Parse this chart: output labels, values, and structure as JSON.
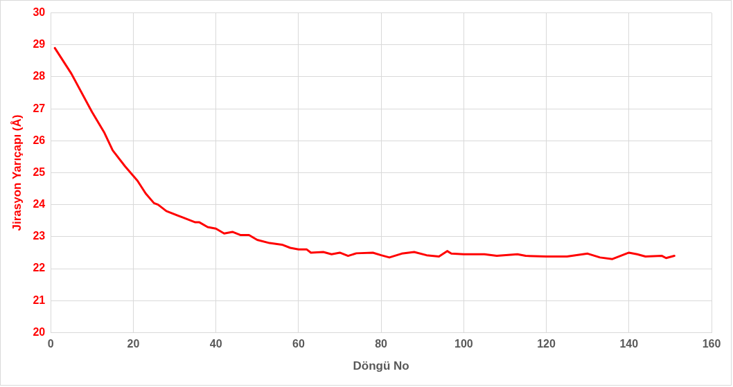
{
  "chart_data": {
    "type": "line",
    "xlabel": "Döngü No",
    "ylabel": "Jirasyon Yarıçapı (Å)",
    "xlim": [
      0,
      160
    ],
    "xticks": [
      0,
      20,
      40,
      60,
      80,
      100,
      120,
      140,
      160
    ],
    "ylim": [
      20,
      30
    ],
    "yticks": [
      20,
      21,
      22,
      23,
      24,
      25,
      26,
      27,
      28,
      29,
      30
    ],
    "grid": true,
    "legend": false,
    "marker": "none",
    "line_style": "solid",
    "series": [
      {
        "color": "#ff0000",
        "x": [
          1,
          5,
          10,
          13,
          15,
          18,
          21,
          23,
          25,
          26,
          28,
          32,
          35,
          36,
          38,
          40,
          42,
          44,
          46,
          48,
          50,
          53,
          56,
          58,
          60,
          62,
          63,
          66,
          68,
          70,
          72,
          74,
          78,
          80,
          82,
          85,
          88,
          91,
          94,
          96,
          97,
          100,
          105,
          108,
          113,
          115,
          120,
          125,
          130,
          133,
          136,
          140,
          142,
          144,
          148,
          149,
          151
        ],
        "values": [
          28.9,
          28.1,
          26.9,
          26.25,
          25.7,
          25.2,
          24.75,
          24.35,
          24.05,
          24.0,
          23.8,
          23.6,
          23.45,
          23.45,
          23.3,
          23.25,
          23.1,
          23.15,
          23.05,
          23.05,
          22.9,
          22.8,
          22.75,
          22.65,
          22.6,
          22.6,
          22.5,
          22.52,
          22.45,
          22.5,
          22.4,
          22.48,
          22.5,
          22.42,
          22.35,
          22.47,
          22.52,
          22.42,
          22.38,
          22.55,
          22.47,
          22.45,
          22.45,
          22.4,
          22.45,
          22.4,
          22.38,
          22.38,
          22.47,
          22.35,
          22.3,
          22.5,
          22.45,
          22.38,
          22.4,
          22.33,
          22.4
        ]
      }
    ]
  }
}
